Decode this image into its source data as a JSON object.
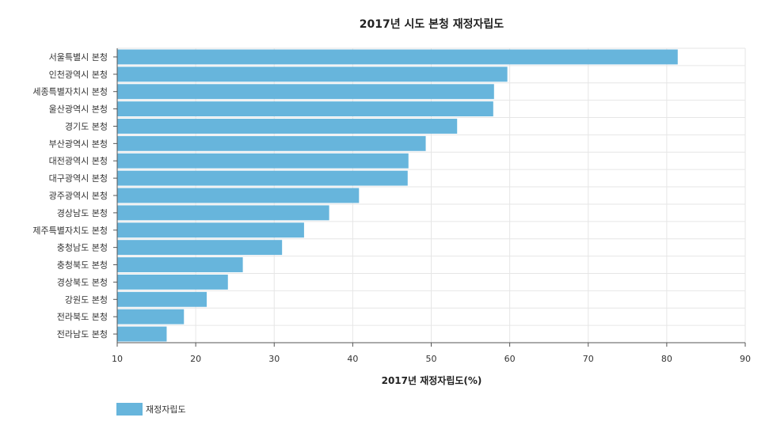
{
  "chart_data": {
    "type": "bar",
    "orientation": "horizontal",
    "title": "2017년 시도 본청 재정자립도",
    "xlabel": "2017년 재정자립도(%)",
    "ylabel": "",
    "xlim": [
      10,
      90
    ],
    "x_ticks": [
      "10",
      "20",
      "30",
      "40",
      "50",
      "60",
      "70",
      "80",
      "90"
    ],
    "grid": true,
    "legend_position": "bottom-left",
    "categories": [
      "서울특별시 본청",
      "인천광역시 본청",
      "세종특별자치시 본청",
      "울산광역시 본청",
      "경기도 본청",
      "부산광역시 본청",
      "대전광역시 본청",
      "대구광역시 본청",
      "광주광역시 본청",
      "경상남도 본청",
      "제주특별자치도 본청",
      "충청남도 본청",
      "충청북도 본청",
      "경상북도 본청",
      "강원도 본청",
      "전라북도 본청",
      "전라남도 본청"
    ],
    "series": [
      {
        "name": "재정자립도",
        "color": "#67b5dc",
        "values": [
          81.4,
          59.7,
          58.0,
          57.9,
          53.3,
          49.3,
          47.1,
          47.0,
          40.8,
          37.0,
          33.8,
          31.0,
          26.0,
          24.1,
          21.4,
          18.5,
          16.3
        ]
      }
    ]
  }
}
